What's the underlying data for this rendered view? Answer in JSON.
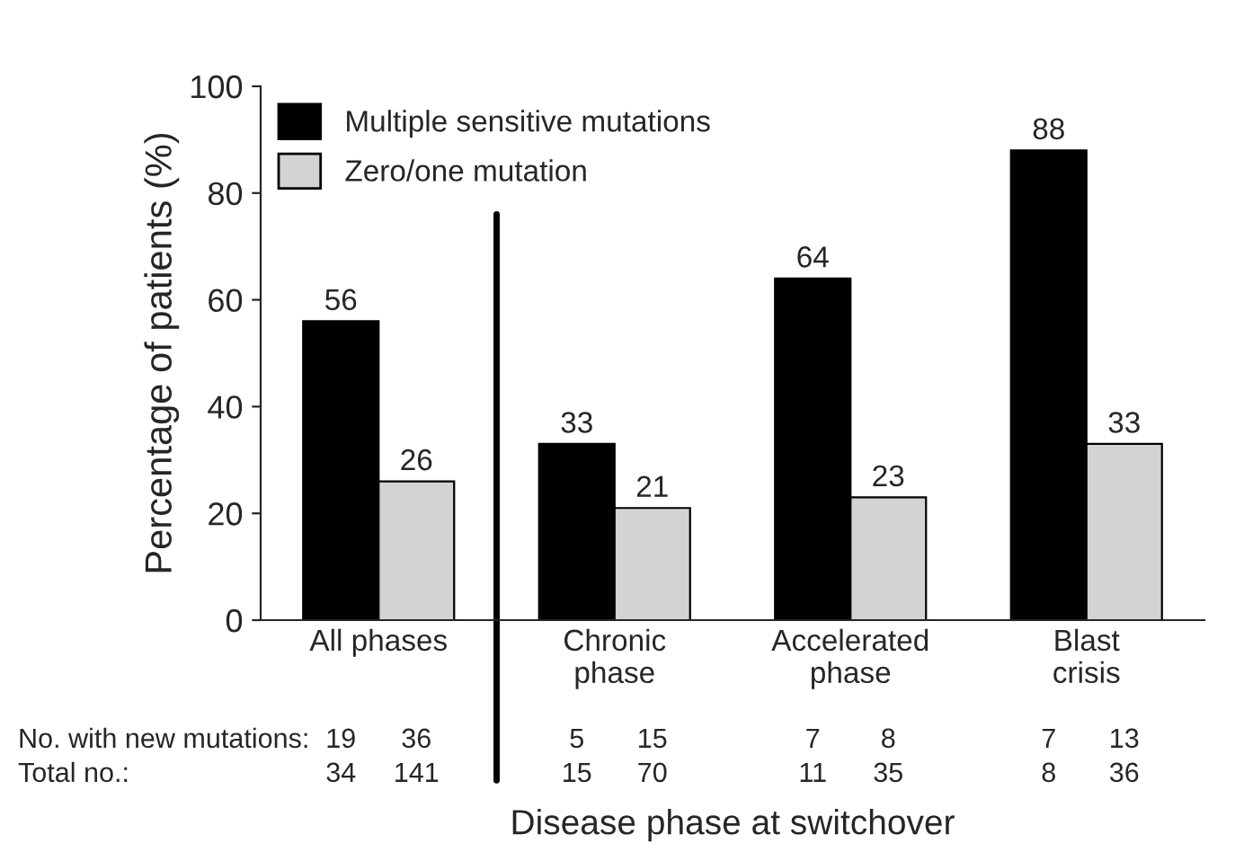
{
  "chart_data": {
    "type": "bar",
    "categories": [
      "All phases",
      "Chronic\nphase",
      "Accelerated\nphase",
      "Blast\ncrisis"
    ],
    "series": [
      {
        "name": "Multiple sensitive mutations",
        "color": "#000000",
        "values": [
          56,
          33,
          64,
          88
        ]
      },
      {
        "name": "Zero/one mutation",
        "color": "#d3d3d3",
        "values": [
          26,
          21,
          23,
          33
        ]
      }
    ],
    "ylabel": "Percentage of patients (%)",
    "xlabel": "Disease phase at switchover",
    "ylim": [
      0,
      100
    ],
    "yticks": [
      0,
      20,
      40,
      60,
      80,
      100
    ],
    "data_labels": true,
    "legend": "top left",
    "grid": false,
    "annotations": [
      "No. with new mutations:",
      "Total no.:",
      "19",
      "36",
      "34",
      "141",
      "5",
      "15",
      "15",
      "70",
      "7",
      "8",
      "11",
      "35",
      "7",
      "13",
      "8",
      "36"
    ]
  }
}
